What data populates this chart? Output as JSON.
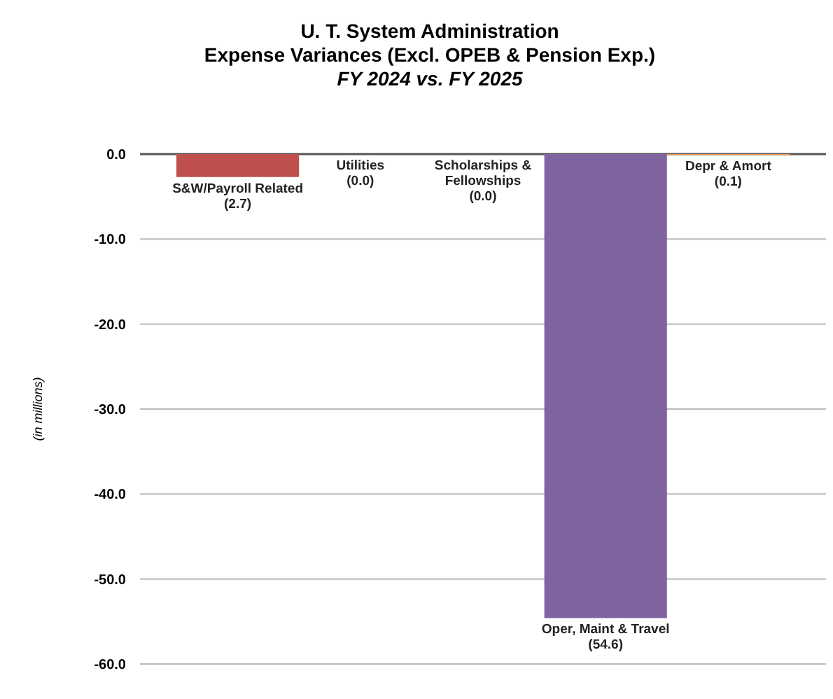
{
  "chart_data": {
    "type": "bar",
    "title": "U. T. System Administration\nExpense Variances (Excl. OPEB & Pension Exp.)",
    "subtitle": "FY 2024 vs. FY 2025",
    "ylabel": "(in millions)",
    "categories": [
      "S&W/Payroll Related",
      "Utilities",
      "Scholarships & Fellowships",
      "Oper, Maint & Travel",
      "Depr & Amort"
    ],
    "values": [
      -2.7,
      0.0,
      0.0,
      -54.6,
      -0.1
    ],
    "colors": [
      "#c0504d",
      "#9bbb59",
      "#4bacc6",
      "#8064a2",
      "#f79646"
    ],
    "value_labels": [
      "(2.7)",
      "(0.0)",
      "(0.0)",
      "(54.6)",
      "(0.1)"
    ],
    "ylim": [
      -60,
      0
    ],
    "yticks": [
      {
        "value": 0,
        "label": "0.0"
      },
      {
        "value": -10,
        "label": "-10.0"
      },
      {
        "value": -20,
        "label": "-20.0"
      },
      {
        "value": -30,
        "label": "-30.0"
      },
      {
        "value": -40,
        "label": "-40.0"
      },
      {
        "value": -50,
        "label": "-50.0"
      },
      {
        "value": -60,
        "label": "-60.0"
      }
    ],
    "grid": true
  }
}
